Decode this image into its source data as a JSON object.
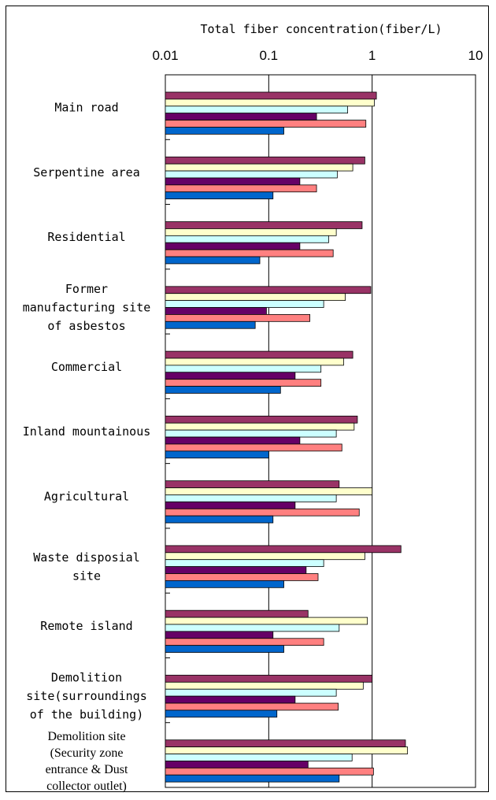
{
  "chart_data": {
    "type": "bar",
    "orientation": "horizontal",
    "title": "Total fiber concentration(fiber/L)",
    "xaxis": {
      "scale": "log",
      "range": [
        0.01,
        10
      ],
      "ticks": [
        "0.01",
        "0.1",
        "1",
        "10"
      ],
      "position": "top",
      "grid": true
    },
    "categories": [
      [
        "Main road"
      ],
      [
        "Serpentine area"
      ],
      [
        "Residential"
      ],
      [
        "Former",
        "manufacturing site",
        "of asbestos"
      ],
      [
        "Commercial"
      ],
      [
        "Inland mountainous"
      ],
      [
        "Agricultural"
      ],
      [
        "Waste disposial",
        "site"
      ],
      [
        "Remote island"
      ],
      [
        "Demolition",
        "site(surroundings",
        "of the building)"
      ],
      [
        "Demolition site",
        "(Security zone",
        "entrance & Dust",
        "collector outlet)"
      ]
    ],
    "series": [
      {
        "color": "#993366",
        "values": [
          1.1,
          0.85,
          0.8,
          0.97,
          0.65,
          0.72,
          0.48,
          1.9,
          0.24,
          1.0,
          2.1
        ]
      },
      {
        "color": "#ffffcc",
        "values": [
          1.05,
          0.65,
          0.45,
          0.55,
          0.53,
          0.67,
          1.0,
          0.85,
          0.9,
          0.82,
          2.2
        ]
      },
      {
        "color": "#ccffff",
        "values": [
          0.58,
          0.46,
          0.38,
          0.34,
          0.32,
          0.45,
          0.45,
          0.34,
          0.48,
          0.45,
          0.64
        ]
      },
      {
        "color": "#660066",
        "values": [
          0.29,
          0.2,
          0.2,
          0.095,
          0.18,
          0.2,
          0.18,
          0.23,
          0.11,
          0.18,
          0.24
        ]
      },
      {
        "color": "#ff8080",
        "values": [
          0.87,
          0.29,
          0.42,
          0.25,
          0.32,
          0.51,
          0.75,
          0.3,
          0.34,
          0.47,
          1.03
        ]
      },
      {
        "color": "#0066cc",
        "values": [
          0.14,
          0.11,
          0.082,
          0.074,
          0.13,
          0.1,
          0.11,
          0.14,
          0.14,
          0.12,
          0.48
        ]
      }
    ],
    "legend": "none"
  }
}
